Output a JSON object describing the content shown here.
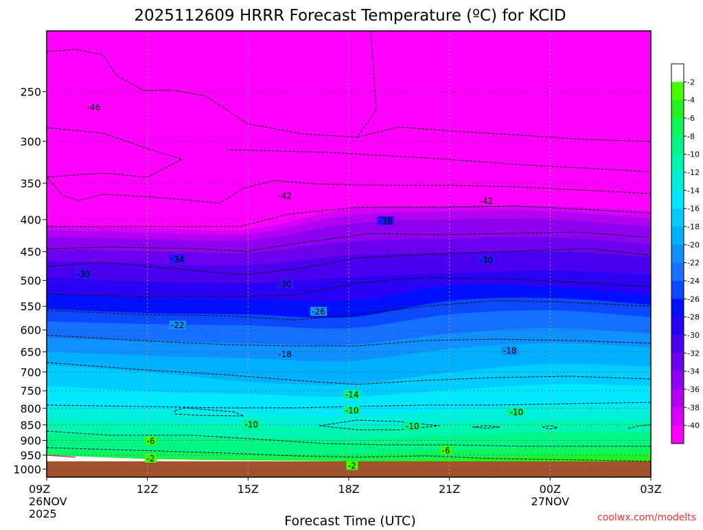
{
  "chart_data": {
    "type": "heatmap",
    "title": "2025112609 HRRR Forecast Temperature (ºC) for KCID",
    "xlabel": "Forecast Time (UTC)",
    "ylabel": "",
    "credit": "coolwx.com/modelts",
    "x_ticks": [
      {
        "label": "09Z",
        "sub1": "26NOV",
        "sub2": "2025",
        "hour": 0
      },
      {
        "label": "12Z",
        "sub1": "",
        "sub2": "",
        "hour": 3
      },
      {
        "label": "15Z",
        "sub1": "",
        "sub2": "",
        "hour": 6
      },
      {
        "label": "18Z",
        "sub1": "",
        "sub2": "",
        "hour": 9
      },
      {
        "label": "21Z",
        "sub1": "",
        "sub2": "",
        "hour": 12
      },
      {
        "label": "00Z",
        "sub1": "27NOV",
        "sub2": "",
        "hour": 15
      },
      {
        "label": "03Z",
        "sub1": "",
        "sub2": "",
        "hour": 18
      }
    ],
    "xlim_hours": [
      0,
      18
    ],
    "y_ticks": [
      250,
      300,
      350,
      400,
      450,
      500,
      550,
      600,
      650,
      700,
      750,
      800,
      850,
      900,
      950,
      1000
    ],
    "ylim_hpa": [
      200,
      1030
    ],
    "y_scale": "log",
    "grid": "dotted",
    "colorbar": {
      "labels": [
        "-2",
        "-4",
        "-6",
        "-8",
        "-10",
        "-12",
        "-14",
        "-16",
        "-18",
        "-20",
        "-22",
        "-24",
        "-26",
        "-28",
        "-30",
        "-32",
        "-34",
        "-36",
        "-38",
        "-40"
      ],
      "colors": [
        "#ffffff",
        "#44ff00",
        "#22f21e",
        "#11f55c",
        "#00f585",
        "#00f5b0",
        "#00f0dc",
        "#00e8ff",
        "#00ccff",
        "#00b0ff",
        "#1090ff",
        "#1570ff",
        "#0b48ff",
        "#0010ff",
        "#2a00f5",
        "#4a00ee",
        "#6c00ee",
        "#8e00f0",
        "#b200f4",
        "#d400f8",
        "#ff00ff"
      ]
    },
    "contour_labels": [
      {
        "text": "-46",
        "hour": 1.4,
        "p": 265
      },
      {
        "text": "-42",
        "hour": 7.1,
        "p": 367
      },
      {
        "text": "-42",
        "hour": 13.1,
        "p": 374
      },
      {
        "text": "-38",
        "hour": 10.1,
        "p": 402
      },
      {
        "text": "-34",
        "hour": 3.9,
        "p": 463
      },
      {
        "text": "-30",
        "hour": 1.1,
        "p": 489
      },
      {
        "text": "-30",
        "hour": 7.1,
        "p": 507
      },
      {
        "text": "-30",
        "hour": 13.1,
        "p": 464
      },
      {
        "text": "-26",
        "hour": 8.1,
        "p": 561
      },
      {
        "text": "-22",
        "hour": 3.9,
        "p": 590
      },
      {
        "text": "-18",
        "hour": 7.1,
        "p": 656
      },
      {
        "text": "-18",
        "hour": 13.8,
        "p": 648
      },
      {
        "text": "-14",
        "hour": 9.1,
        "p": 761
      },
      {
        "text": "-10",
        "hour": 6.1,
        "p": 849
      },
      {
        "text": "-10",
        "hour": 9.1,
        "p": 807
      },
      {
        "text": "-10",
        "hour": 10.9,
        "p": 855
      },
      {
        "text": "-10",
        "hour": 14.0,
        "p": 812
      },
      {
        "text": "-6",
        "hour": 3.1,
        "p": 902
      },
      {
        "text": "-6",
        "hour": 11.9,
        "p": 935
      },
      {
        "text": "-2",
        "hour": 3.1,
        "p": 962
      },
      {
        "text": "-2",
        "hour": 9.1,
        "p": 988
      }
    ]
  }
}
